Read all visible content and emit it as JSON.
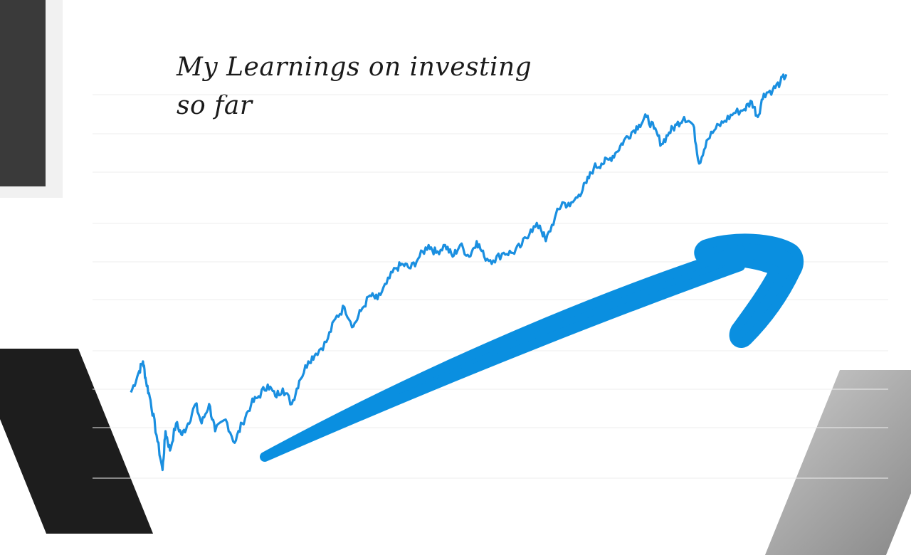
{
  "slide": {
    "title_line1": "My Learnings on investing",
    "title_line2": "so far"
  },
  "colors": {
    "line": "#1a8fe0",
    "arrow": "#0a8fe0",
    "grid": "#eeeeee",
    "text": "#1a1a1a"
  },
  "chart_data": {
    "type": "line",
    "title": "",
    "xlabel": "",
    "ylabel": "",
    "grid": true,
    "legend": "none",
    "ylim": [
      0,
      100
    ],
    "xlim": [
      0,
      100
    ],
    "series": [
      {
        "values": [
          [
            0,
            19
          ],
          [
            1,
            24
          ],
          [
            1.6,
            27
          ],
          [
            2,
            22
          ],
          [
            2.6,
            17
          ],
          [
            3.4,
            8
          ],
          [
            4.2,
            -1
          ],
          [
            4.6,
            9
          ],
          [
            5.2,
            4
          ],
          [
            6,
            11
          ],
          [
            6.8,
            8
          ],
          [
            7.6,
            11
          ],
          [
            8.6,
            16
          ],
          [
            9.4,
            11
          ],
          [
            10.4,
            16
          ],
          [
            11.2,
            9
          ],
          [
            12.6,
            12
          ],
          [
            13.8,
            6
          ],
          [
            14.8,
            11
          ],
          [
            16,
            16
          ],
          [
            17,
            18
          ],
          [
            18.2,
            21
          ],
          [
            19.2,
            18
          ],
          [
            20.2,
            20
          ],
          [
            21.4,
            16
          ],
          [
            22.4,
            22
          ],
          [
            23.6,
            27
          ],
          [
            24.6,
            29
          ],
          [
            26,
            32
          ],
          [
            27.2,
            38
          ],
          [
            28.4,
            41
          ],
          [
            29.6,
            36
          ],
          [
            30.6,
            40
          ],
          [
            31.8,
            44
          ],
          [
            32.8,
            43
          ],
          [
            34,
            47
          ],
          [
            35.2,
            51
          ],
          [
            36.2,
            52
          ],
          [
            37.2,
            51
          ],
          [
            38.4,
            54
          ],
          [
            39.6,
            57
          ],
          [
            40.6,
            55
          ],
          [
            41.8,
            57
          ],
          [
            42.8,
            54
          ],
          [
            43.8,
            57
          ],
          [
            45,
            54
          ],
          [
            46,
            58
          ],
          [
            47,
            54
          ],
          [
            48.2,
            53
          ],
          [
            49.6,
            55
          ],
          [
            50.8,
            55
          ],
          [
            52,
            57
          ],
          [
            53.2,
            61
          ],
          [
            54.4,
            62
          ],
          [
            55.2,
            58
          ],
          [
            56.4,
            64
          ],
          [
            57.4,
            68
          ],
          [
            58.4,
            67
          ],
          [
            59.6,
            70
          ],
          [
            60.6,
            73
          ],
          [
            61.6,
            77
          ],
          [
            62.6,
            78
          ],
          [
            63.6,
            79
          ],
          [
            64.6,
            81
          ],
          [
            65.6,
            84
          ],
          [
            66.6,
            86
          ],
          [
            67.6,
            88
          ],
          [
            68.6,
            90
          ],
          [
            69.6,
            87
          ],
          [
            70.6,
            83
          ],
          [
            71.6,
            86
          ],
          [
            72.6,
            88
          ],
          [
            73.6,
            90
          ],
          [
            74.8,
            88
          ],
          [
            75.6,
            78
          ],
          [
            76.6,
            84
          ],
          [
            77.8,
            87
          ],
          [
            79,
            89
          ],
          [
            80.2,
            91
          ],
          [
            81.6,
            92
          ],
          [
            82.6,
            94
          ],
          [
            83.4,
            90
          ],
          [
            84.2,
            96
          ],
          [
            85.4,
            97
          ],
          [
            86.4,
            99
          ],
          [
            87.2,
            101
          ]
        ]
      }
    ]
  }
}
